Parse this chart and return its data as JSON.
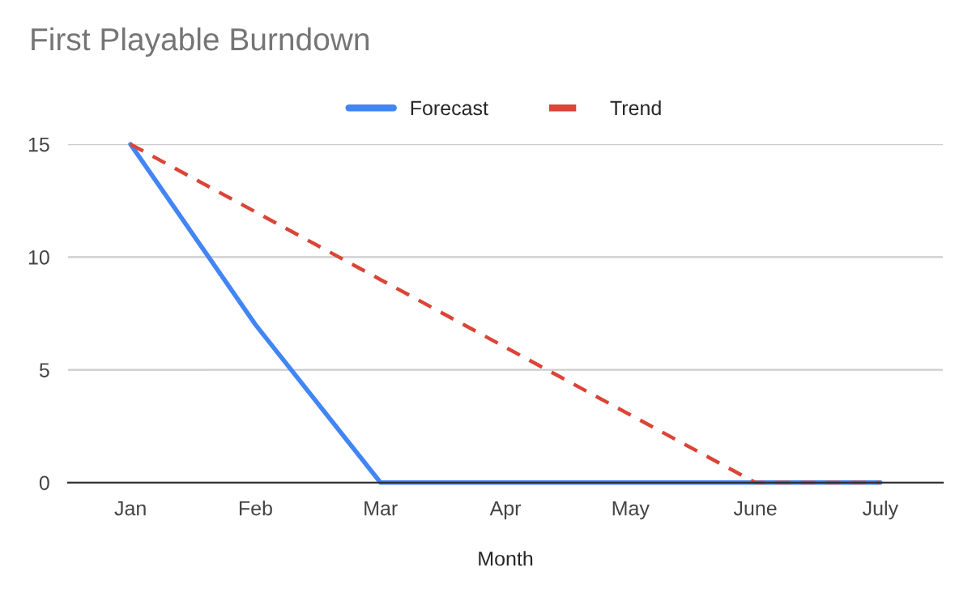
{
  "chart_data": {
    "type": "line",
    "title": "First Playable Burndown",
    "xlabel": "Month",
    "categories": [
      "Jan",
      "Feb",
      "Mar",
      "Apr",
      "May",
      "June",
      "July"
    ],
    "series": [
      {
        "name": "Forecast",
        "color": "#4285f4",
        "line_style": "solid",
        "values": [
          15,
          7,
          0,
          0,
          0,
          0,
          0
        ]
      },
      {
        "name": "Trend",
        "color": "#db4437",
        "line_style": "dashed",
        "values": [
          15,
          12,
          9,
          6,
          3,
          0,
          0
        ]
      }
    ],
    "ylim": [
      0,
      15
    ],
    "yticks": [
      0,
      5,
      10,
      15
    ],
    "grid": "y",
    "legend": "top"
  }
}
